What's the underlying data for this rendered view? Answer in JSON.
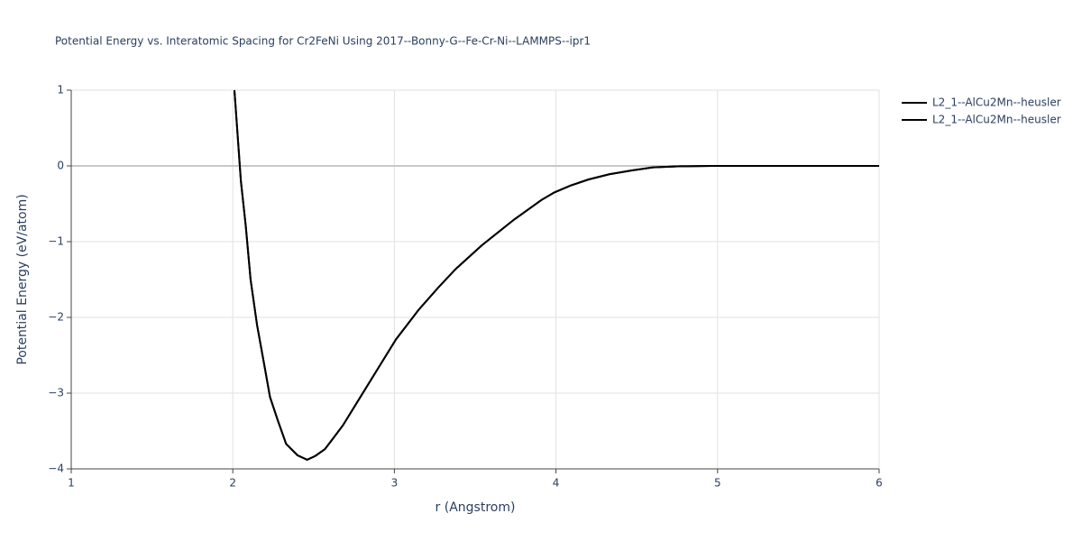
{
  "chart_data": {
    "type": "line",
    "title": "Potential Energy vs. Interatomic Spacing for Cr2FeNi Using 2017--Bonny-G--Fe-Cr-Ni--LAMMPS--ipr1",
    "x_label": "r (Angstrom)",
    "y_label": "Potential Energy (eV/atom)",
    "xlim": [
      1,
      6
    ],
    "ylim": [
      -4,
      1
    ],
    "xticks": [
      1,
      2,
      3,
      4,
      5,
      6
    ],
    "yticks": [
      {
        "value": -4,
        "label": "−4"
      },
      {
        "value": -3,
        "label": "−3"
      },
      {
        "value": -2,
        "label": "−2"
      },
      {
        "value": -1,
        "label": "−1"
      },
      0,
      1
    ],
    "grid": true,
    "legend": "top-right",
    "x": [
      2.01,
      2.03,
      2.05,
      2.08,
      2.11,
      2.15,
      2.2,
      2.23,
      2.28,
      2.33,
      2.4,
      2.46,
      2.51,
      2.57,
      2.62,
      2.68,
      2.79,
      2.9,
      3.01,
      3.15,
      3.27,
      3.38,
      3.54,
      3.74,
      3.91,
      3.99,
      4.09,
      4.2,
      4.33,
      4.47,
      4.6,
      4.77,
      4.97,
      5.5,
      6
    ],
    "series": [
      {
        "name": "L2_1--AlCu2Mn--heusler",
        "color": "#000000",
        "values": [
          1,
          0.4,
          -0.2,
          -0.79,
          -1.5,
          -2.1,
          -2.69,
          -3.05,
          -3.37,
          -3.67,
          -3.82,
          -3.88,
          -3.83,
          -3.74,
          -3.6,
          -3.43,
          -3.05,
          -2.67,
          -2.29,
          -1.9,
          -1.61,
          -1.36,
          -1.05,
          -0.71,
          -0.45,
          -0.35,
          -0.26,
          -0.18,
          -0.11,
          -0.06,
          -0.02,
          -0.005,
          0,
          0,
          0
        ]
      },
      {
        "name": "L2_1--AlCu2Mn--heusler",
        "color": "#000000",
        "values": [
          1,
          0.4,
          -0.2,
          -0.79,
          -1.5,
          -2.1,
          -2.69,
          -3.05,
          -3.37,
          -3.67,
          -3.82,
          -3.88,
          -3.83,
          -3.74,
          -3.6,
          -3.43,
          -3.05,
          -2.67,
          -2.29,
          -1.9,
          -1.61,
          -1.36,
          -1.05,
          -0.71,
          -0.45,
          -0.35,
          -0.26,
          -0.18,
          -0.11,
          -0.06,
          -0.02,
          -0.005,
          0,
          0,
          0
        ]
      }
    ]
  }
}
